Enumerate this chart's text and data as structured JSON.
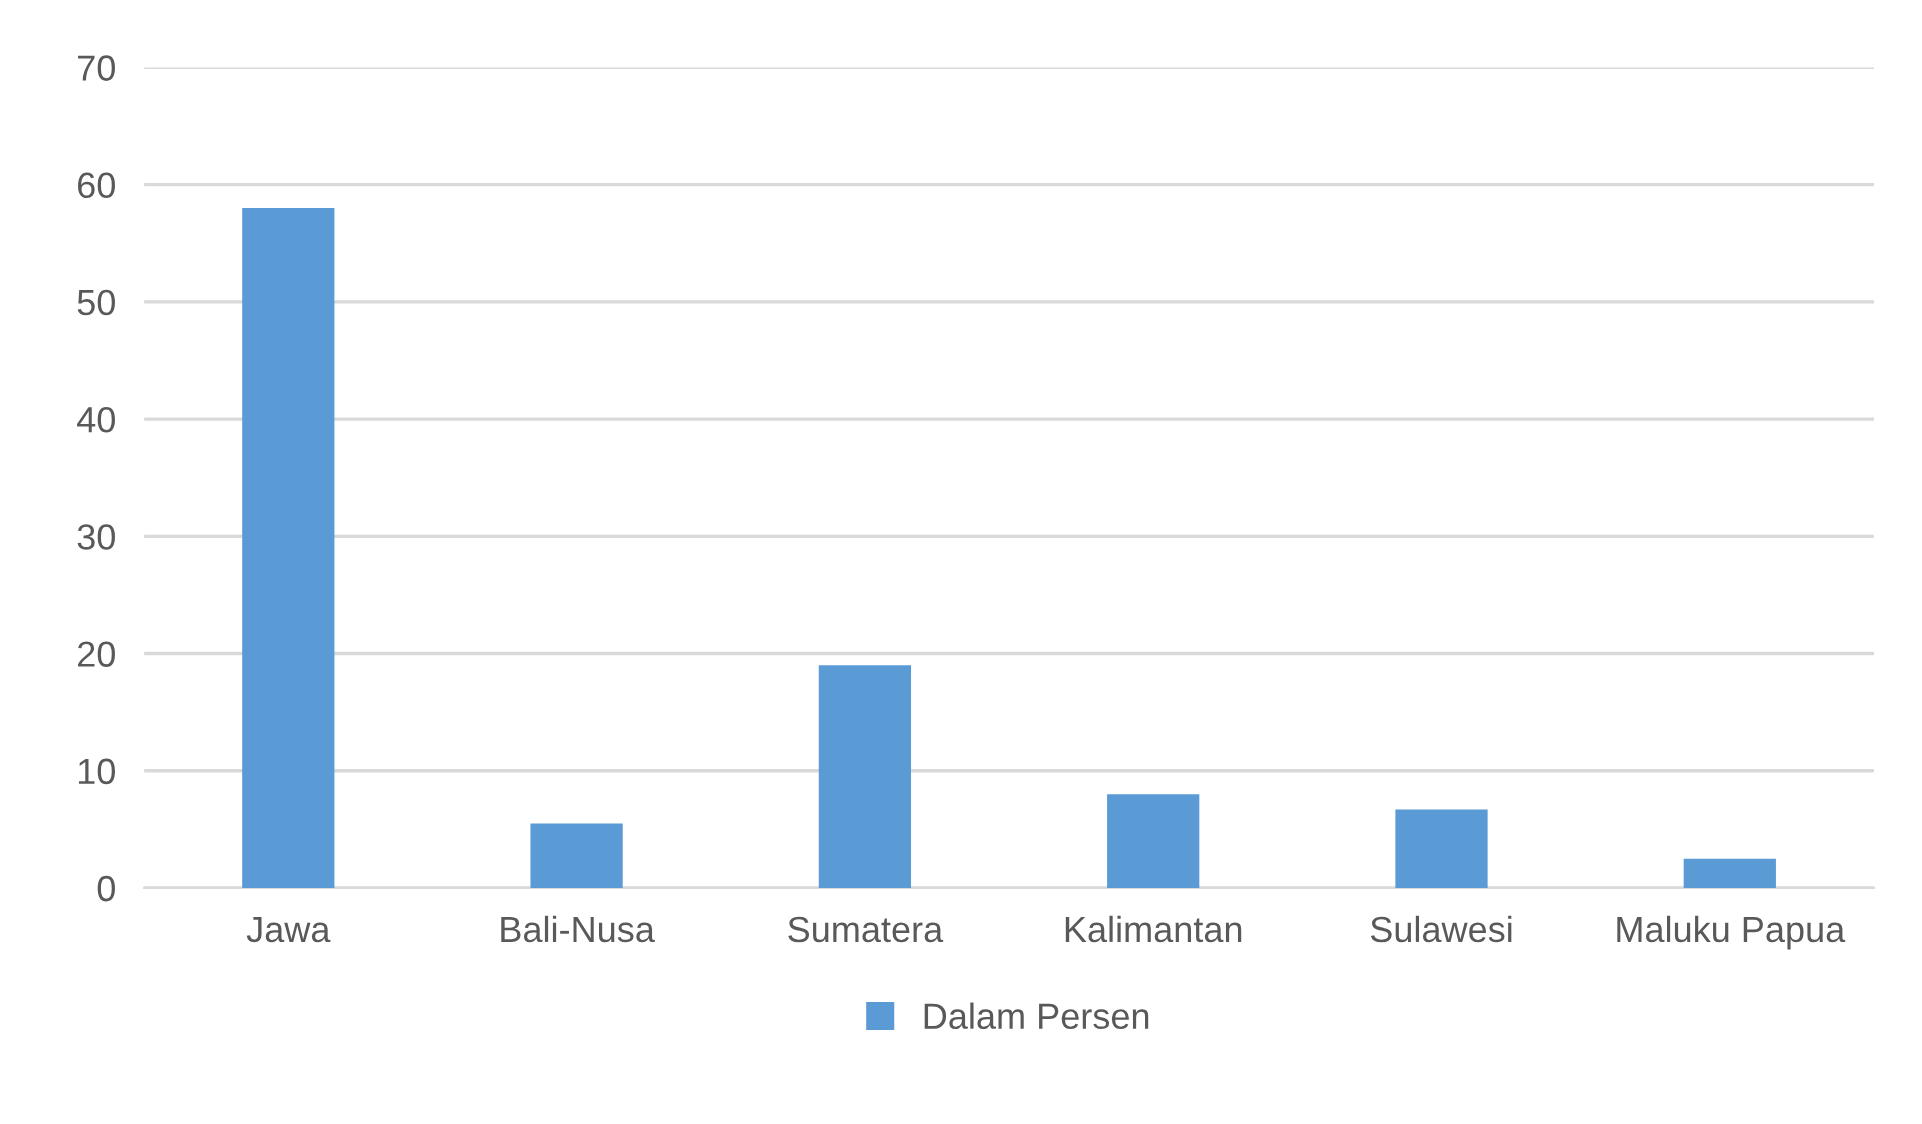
{
  "chart_data": {
    "type": "bar",
    "categories": [
      "Jawa",
      "Bali-Nusa",
      "Sumatera",
      "Kalimantan",
      "Sulawesi",
      "Maluku Papua"
    ],
    "series": [
      {
        "name": "Dalam Persen",
        "color": "#5b9bd5",
        "values": [
          58.0,
          5.5,
          19.0,
          8.0,
          6.7,
          2.5
        ]
      }
    ],
    "ylim": [
      0,
      70
    ],
    "yticks": [
      0,
      10,
      20,
      30,
      40,
      50,
      60,
      70
    ],
    "grid": "y",
    "legend": "bottom"
  }
}
